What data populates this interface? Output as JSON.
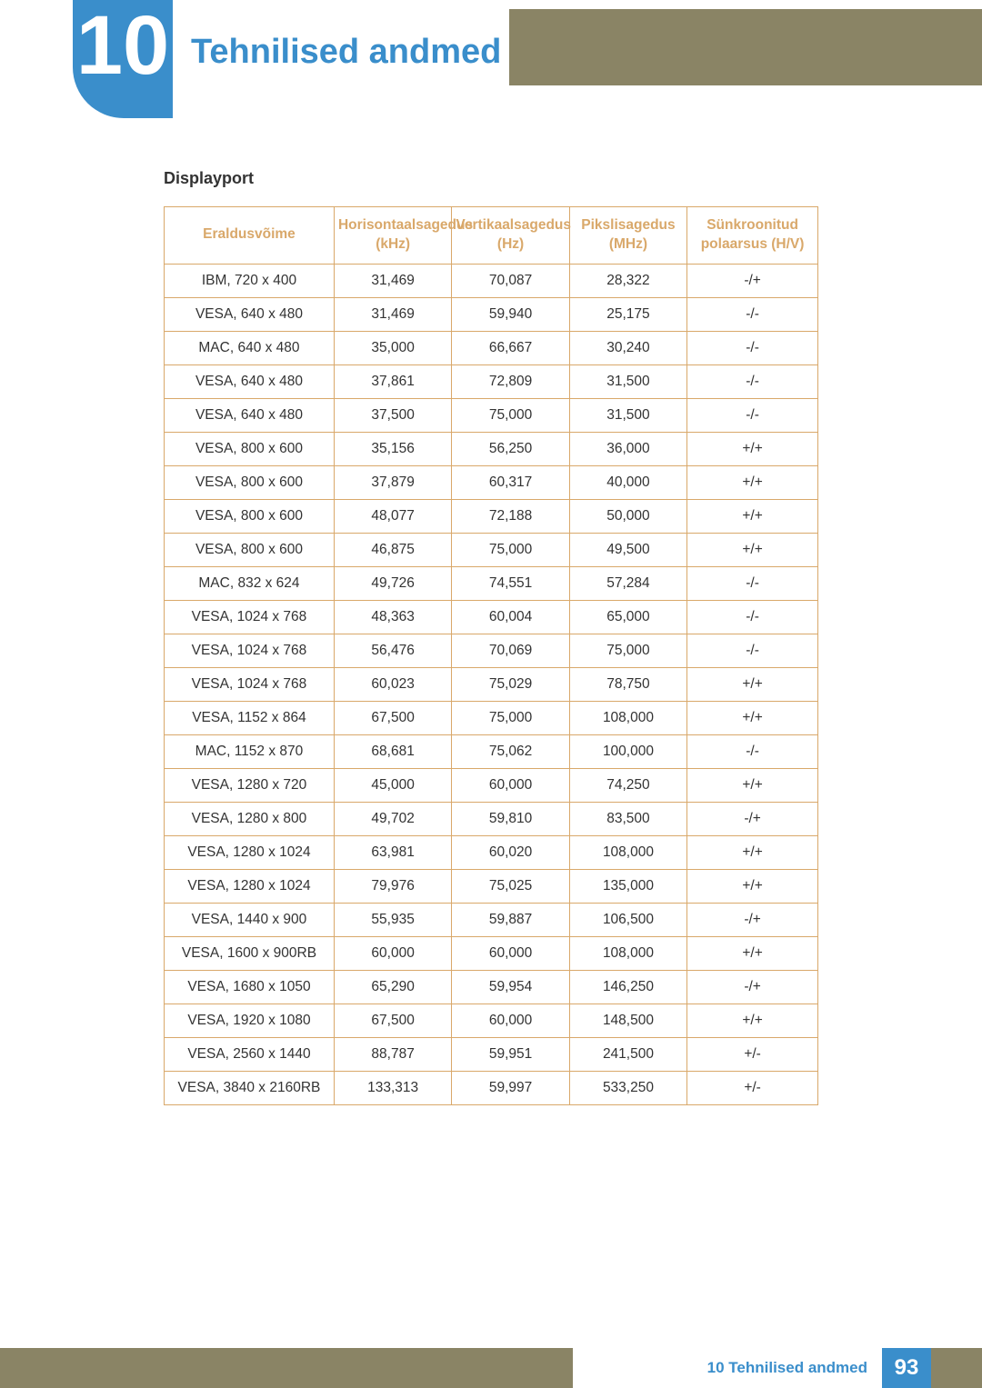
{
  "chapter": {
    "number": "10",
    "title": "Tehnilised andmed"
  },
  "section": {
    "title": "Displayport"
  },
  "table": {
    "columns": [
      "Eraldusvõime",
      "Horisontaalsagedus (kHz)",
      "Vertikaalsagedus (Hz)",
      "Pikslisagedus (MHz)",
      "Sünkroonitud polaarsus (H/V)"
    ],
    "rows": [
      [
        "IBM, 720 x 400",
        "31,469",
        "70,087",
        "28,322",
        "-/+"
      ],
      [
        "VESA, 640 x 480",
        "31,469",
        "59,940",
        "25,175",
        "-/-"
      ],
      [
        "MAC, 640 x 480",
        "35,000",
        "66,667",
        "30,240",
        "-/-"
      ],
      [
        "VESA, 640 x 480",
        "37,861",
        "72,809",
        "31,500",
        "-/-"
      ],
      [
        "VESA, 640 x 480",
        "37,500",
        "75,000",
        "31,500",
        "-/-"
      ],
      [
        "VESA, 800 x 600",
        "35,156",
        "56,250",
        "36,000",
        "+/+"
      ],
      [
        "VESA, 800 x 600",
        "37,879",
        "60,317",
        "40,000",
        "+/+"
      ],
      [
        "VESA, 800 x 600",
        "48,077",
        "72,188",
        "50,000",
        "+/+"
      ],
      [
        "VESA, 800 x 600",
        "46,875",
        "75,000",
        "49,500",
        "+/+"
      ],
      [
        "MAC, 832 x 624",
        "49,726",
        "74,551",
        "57,284",
        "-/-"
      ],
      [
        "VESA, 1024 x 768",
        "48,363",
        "60,004",
        "65,000",
        "-/-"
      ],
      [
        "VESA, 1024 x 768",
        "56,476",
        "70,069",
        "75,000",
        "-/-"
      ],
      [
        "VESA, 1024 x 768",
        "60,023",
        "75,029",
        "78,750",
        "+/+"
      ],
      [
        "VESA, 1152 x 864",
        "67,500",
        "75,000",
        "108,000",
        "+/+"
      ],
      [
        "MAC, 1152 x 870",
        "68,681",
        "75,062",
        "100,000",
        "-/-"
      ],
      [
        "VESA, 1280 x 720",
        "45,000",
        "60,000",
        "74,250",
        "+/+"
      ],
      [
        "VESA, 1280 x 800",
        "49,702",
        "59,810",
        "83,500",
        "-/+"
      ],
      [
        "VESA, 1280 x 1024",
        "63,981",
        "60,020",
        "108,000",
        "+/+"
      ],
      [
        "VESA, 1280 x 1024",
        "79,976",
        "75,025",
        "135,000",
        "+/+"
      ],
      [
        "VESA, 1440 x 900",
        "55,935",
        "59,887",
        "106,500",
        "-/+"
      ],
      [
        "VESA, 1600 x 900RB",
        "60,000",
        "60,000",
        "108,000",
        "+/+"
      ],
      [
        "VESA, 1680 x 1050",
        "65,290",
        "59,954",
        "146,250",
        "-/+"
      ],
      [
        "VESA, 1920 x 1080",
        "67,500",
        "60,000",
        "148,500",
        "+/+"
      ],
      [
        "VESA, 2560 x 1440",
        "88,787",
        "59,951",
        "241,500",
        "+/-"
      ],
      [
        "VESA, 3840 x 2160RB",
        "133,313",
        "59,997",
        "533,250",
        "+/-"
      ]
    ]
  },
  "footer": {
    "label": "10 Tehnilised andmed",
    "page": "93"
  },
  "colors": {
    "accent_blue": "#3a8ecb",
    "band_olive": "#8a8465",
    "table_border": "#d9a86a",
    "text": "#333333"
  }
}
